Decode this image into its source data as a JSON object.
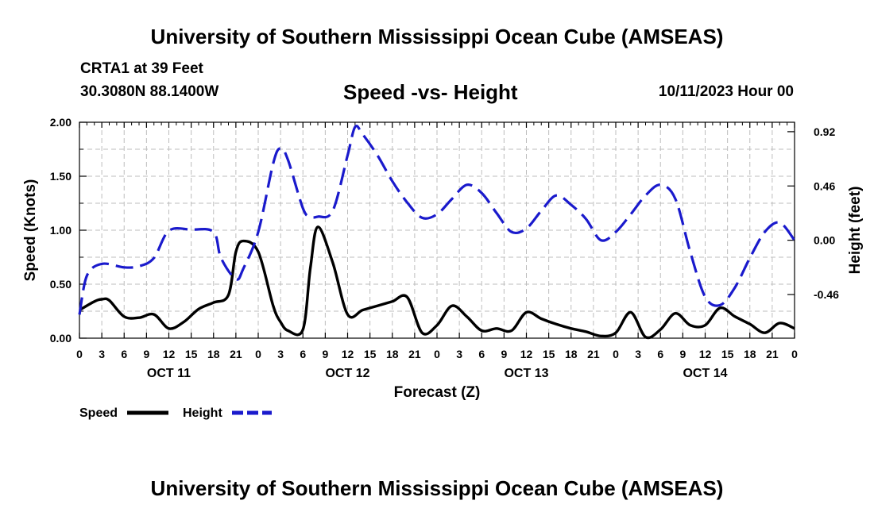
{
  "header": {
    "main_title": "University of Southern Mississippi Ocean Cube (AMSEAS)",
    "station": "CRTA1 at 39 Feet",
    "coordinates": "30.3080N  88.1400W",
    "subtitle": "Speed -vs- Height",
    "datestamp": "10/11/2023 Hour 00",
    "bottom_title": "University of Southern Mississippi Ocean Cube (AMSEAS)"
  },
  "chart_data": {
    "type": "line",
    "title": "Speed -vs- Height",
    "xlabel": "Forecast (Z)",
    "ylabel": "Speed (Knots)",
    "y2label": "Height (feet)",
    "xlim": [
      0,
      96
    ],
    "ylim": [
      0,
      2.0
    ],
    "y2lim": [
      -0.83,
      1.0
    ],
    "grid": true,
    "legend_position": "bottom-left",
    "x_tick_labels": [
      "0",
      "3",
      "6",
      "9",
      "12",
      "15",
      "18",
      "21",
      "0",
      "3",
      "6",
      "9",
      "12",
      "15",
      "18",
      "21",
      "0",
      "3",
      "6",
      "9",
      "12",
      "15",
      "18",
      "21",
      "0",
      "3",
      "6",
      "9",
      "12",
      "15",
      "18",
      "21",
      "0"
    ],
    "day_labels": [
      "OCT 11",
      "OCT 12",
      "OCT 13",
      "OCT 14"
    ],
    "y_ticks": [
      "0.00",
      "0.50",
      "1.00",
      "1.50",
      "2.00"
    ],
    "y_tick_values": [
      0,
      0.5,
      1.0,
      1.5,
      2.0
    ],
    "y2_ticks": [
      "-0.46",
      "0.00",
      "0.46",
      "0.92"
    ],
    "y2_tick_values": [
      -0.46,
      0,
      0.46,
      0.92
    ],
    "series": [
      {
        "name": "Speed",
        "axis": "left",
        "color": "#000000",
        "style": "solid",
        "x": [
          0,
          2,
          3,
          4,
          6,
          8,
          10,
          12,
          14,
          16,
          18,
          20,
          21,
          22,
          24,
          26,
          27,
          28,
          30,
          31,
          32,
          34,
          36,
          38,
          40,
          42,
          44,
          46,
          48,
          50,
          52,
          54,
          56,
          58,
          60,
          62,
          64,
          66,
          68,
          70,
          72,
          74,
          76,
          78,
          80,
          82,
          84,
          86,
          88,
          90,
          92,
          94,
          96
        ],
        "values": [
          0.26,
          0.34,
          0.36,
          0.35,
          0.2,
          0.19,
          0.22,
          0.09,
          0.15,
          0.27,
          0.33,
          0.4,
          0.8,
          0.9,
          0.8,
          0.3,
          0.15,
          0.07,
          0.08,
          0.65,
          1.03,
          0.7,
          0.22,
          0.26,
          0.3,
          0.34,
          0.38,
          0.05,
          0.12,
          0.3,
          0.2,
          0.07,
          0.09,
          0.07,
          0.24,
          0.18,
          0.13,
          0.09,
          0.06,
          0.02,
          0.05,
          0.24,
          0.01,
          0.08,
          0.23,
          0.12,
          0.12,
          0.28,
          0.2,
          0.13,
          0.05,
          0.14,
          0.09
        ]
      },
      {
        "name": "Height",
        "axis": "right",
        "color": "#1a1acc",
        "style": "dashed",
        "x": [
          0,
          1,
          3,
          6,
          8,
          10,
          12,
          15,
          18,
          19,
          21,
          22,
          24,
          26,
          27,
          28,
          30,
          31,
          32,
          34,
          36,
          37,
          38,
          40,
          42,
          44,
          46,
          48,
          50,
          52,
          54,
          56,
          58,
          60,
          62,
          64,
          66,
          68,
          70,
          72,
          74,
          76,
          78,
          80,
          82,
          84,
          86,
          88,
          90,
          92,
          94,
          96
        ],
        "values": [
          -0.63,
          -0.3,
          -0.2,
          -0.23,
          -0.22,
          -0.15,
          0.08,
          0.09,
          0.07,
          -0.15,
          -0.33,
          -0.24,
          0.07,
          0.65,
          0.78,
          0.68,
          0.27,
          0.2,
          0.2,
          0.25,
          0.72,
          0.96,
          0.9,
          0.72,
          0.5,
          0.32,
          0.19,
          0.22,
          0.35,
          0.47,
          0.4,
          0.23,
          0.07,
          0.1,
          0.25,
          0.38,
          0.3,
          0.18,
          0.0,
          0.07,
          0.22,
          0.38,
          0.47,
          0.35,
          -0.1,
          -0.48,
          -0.55,
          -0.4,
          -0.15,
          0.07,
          0.15,
          0.0
        ]
      }
    ]
  },
  "legend": {
    "speed_label": "Speed",
    "height_label": "Height"
  }
}
